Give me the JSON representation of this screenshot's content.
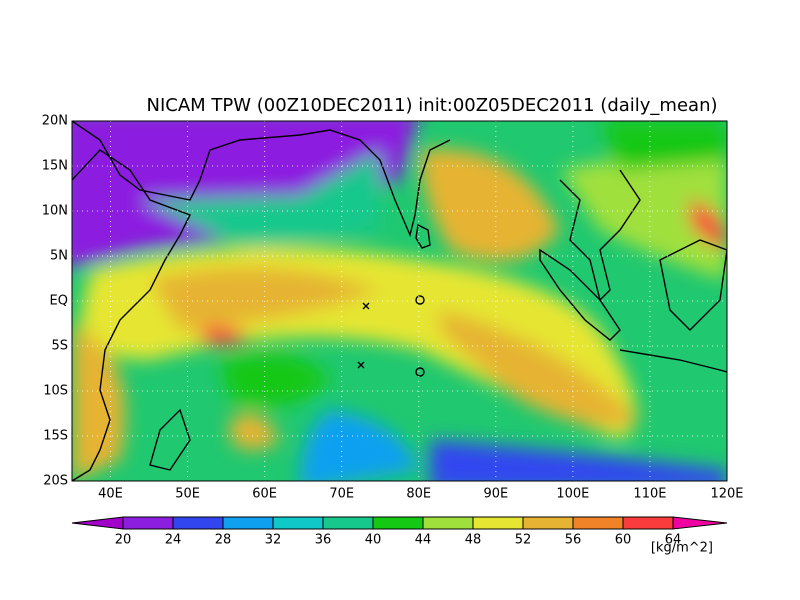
{
  "title": "NICAM TPW (00Z10DEC2011) init:00Z05DEC2011 (daily_mean)",
  "lat_labels": [
    "20N",
    "15N",
    "10N",
    "5N",
    "EQ",
    "5S",
    "10S",
    "15S",
    "20S"
  ],
  "lon_labels": [
    "40E",
    "50E",
    "60E",
    "70E",
    "80E",
    "90E",
    "100E",
    "110E",
    "120E"
  ],
  "colorbar": {
    "labels": [
      20,
      24,
      28,
      32,
      36,
      40,
      44,
      48,
      52,
      56,
      60,
      64
    ],
    "colors": [
      "#a000c8",
      "#8c1ee0",
      "#3246f0",
      "#10a0f0",
      "#10c8c8",
      "#16c88c",
      "#14c814",
      "#a0e03c",
      "#e6e632",
      "#e6b432",
      "#f08228",
      "#fa3c3c",
      "#f000a0"
    ],
    "unit": "[kg/m^2]"
  }
}
